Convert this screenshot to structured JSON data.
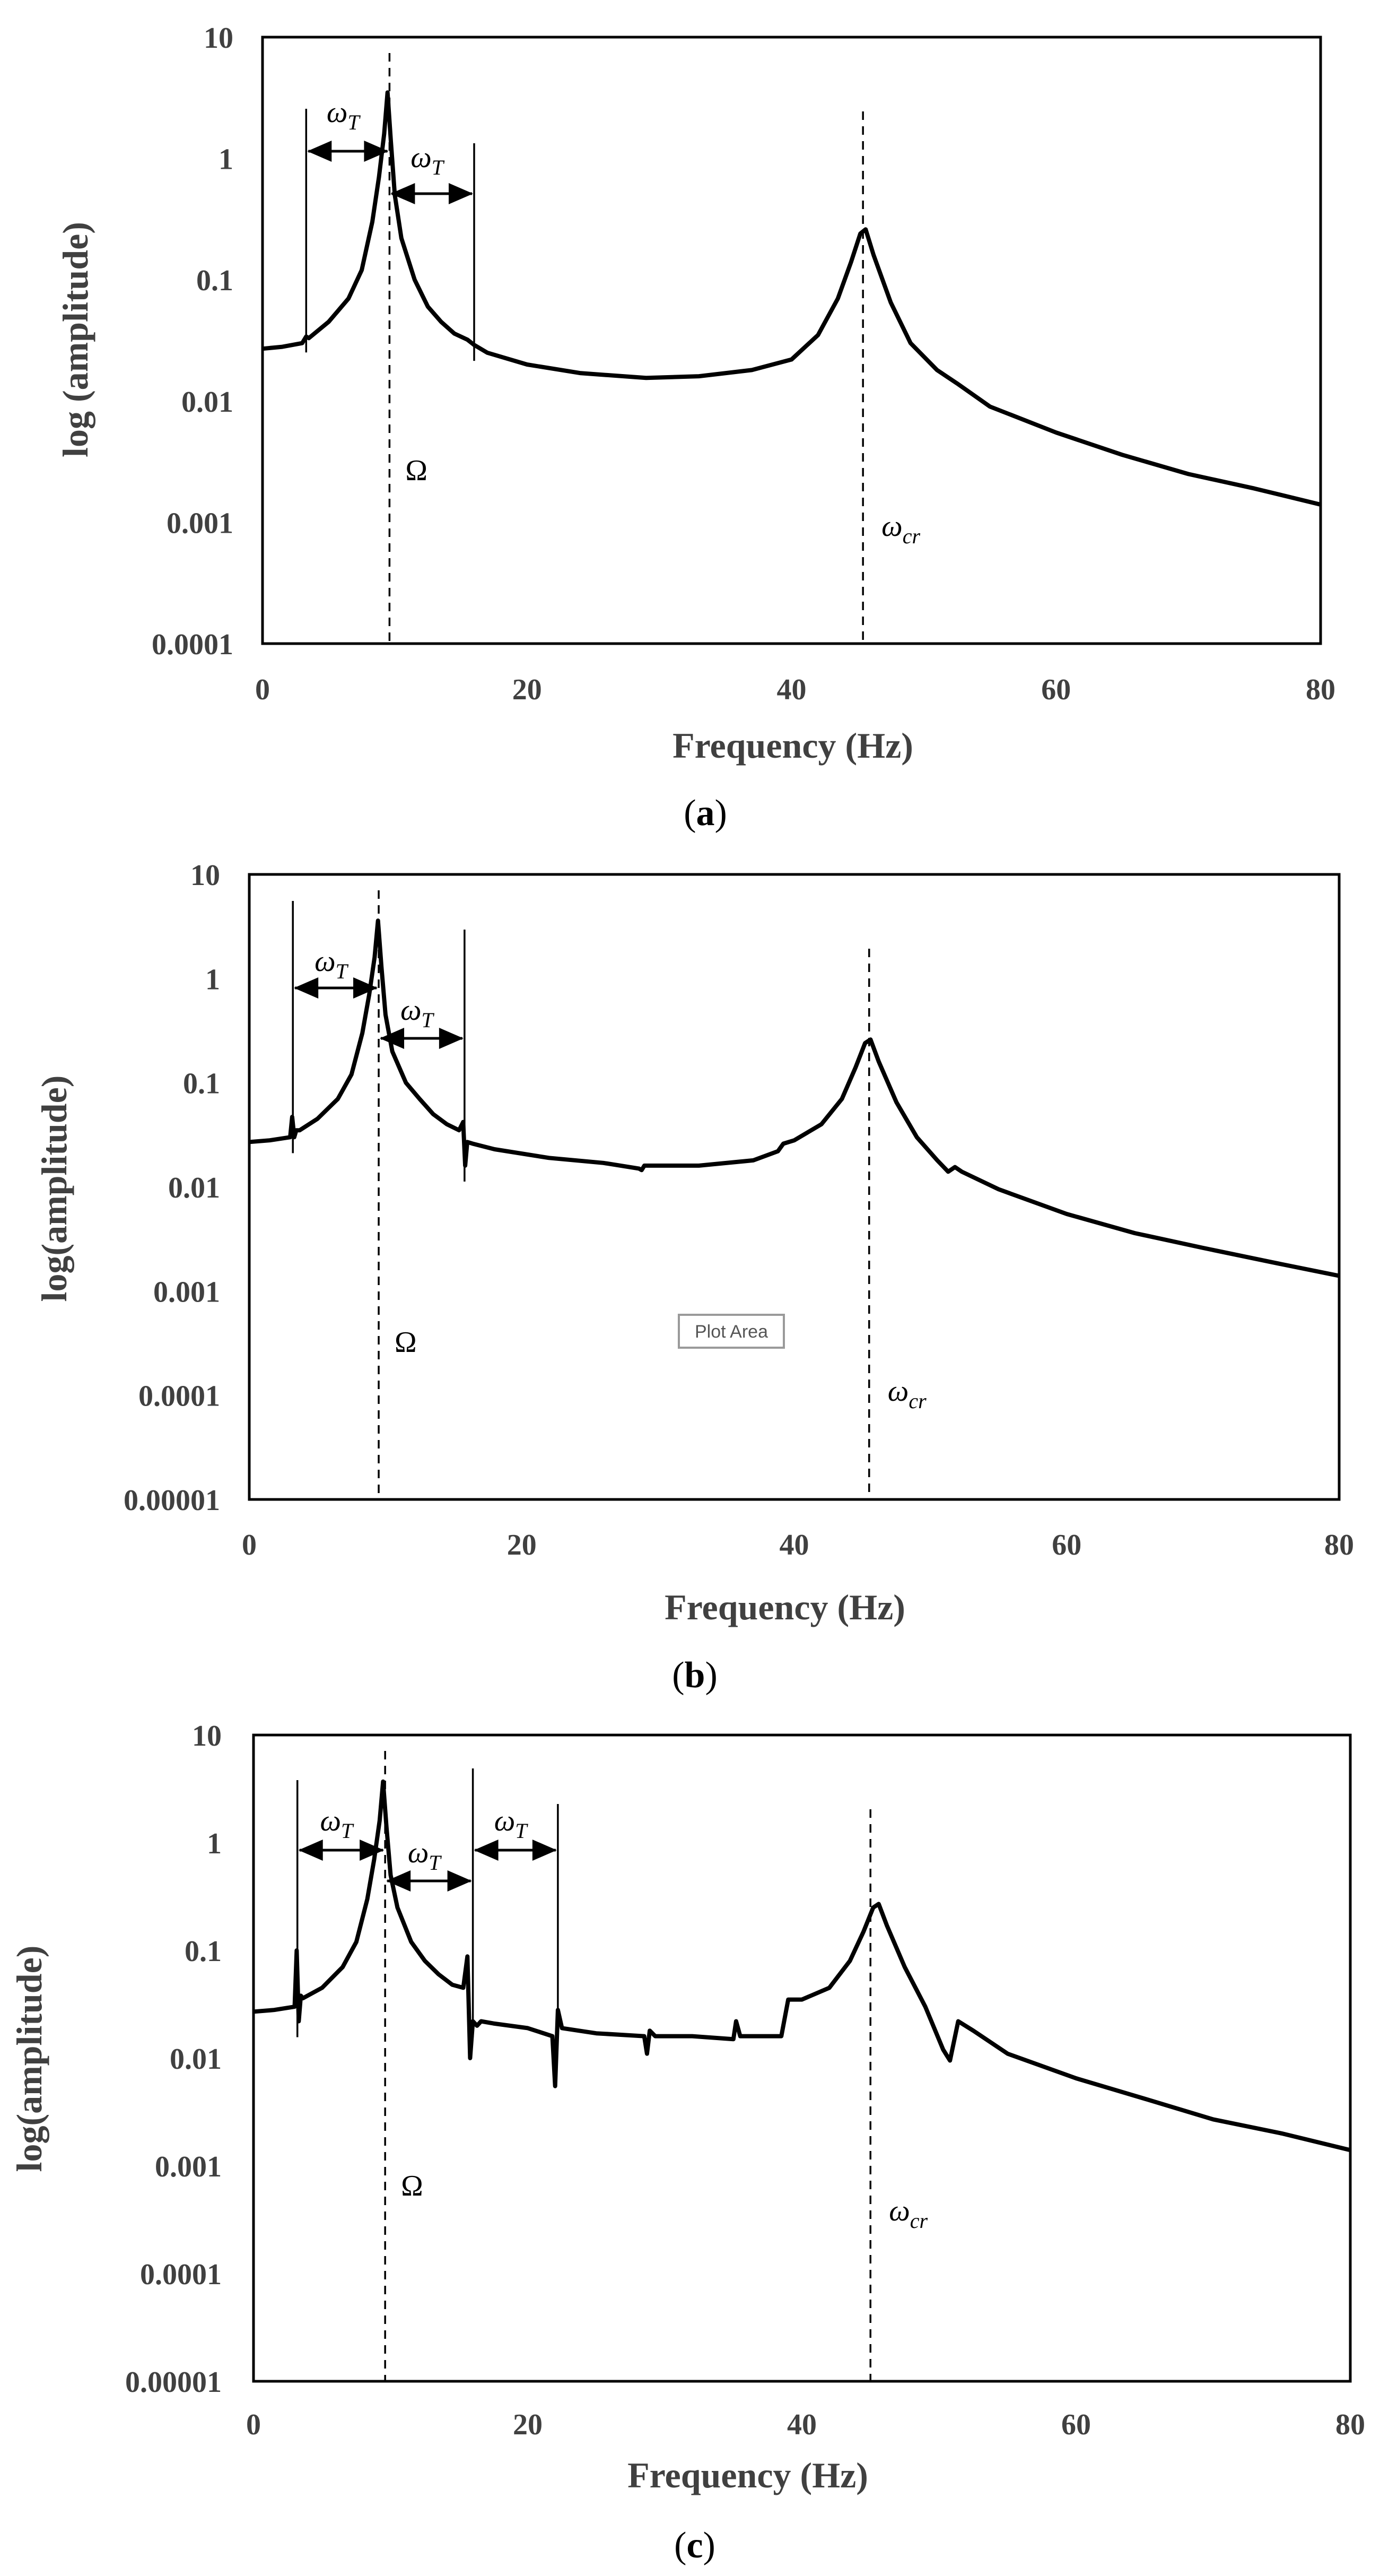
{
  "chart_data": [
    {
      "type": "line",
      "panel": "a",
      "caption_open": "(",
      "caption_letter": "a",
      "caption_close": ")",
      "xlabel": "Frequency (Hz)",
      "ylabel": "log (amplitude)",
      "xlim": [
        0,
        80
      ],
      "ylim": [
        0.0001,
        10
      ],
      "yscale": "log",
      "xticks": [
        "0",
        "20",
        "40",
        "60",
        "80"
      ],
      "yticks": [
        "0.0001",
        "0.001",
        "0.01",
        "0.1",
        "1",
        "10"
      ],
      "series": [
        {
          "name": "amplitude",
          "x": [
            0,
            1.5,
            3,
            3.3,
            3.5,
            5,
            6.5,
            7.5,
            8.3,
            8.8,
            9.2,
            9.45,
            9.7,
            10.0,
            10.5,
            11.5,
            12.5,
            13.5,
            14.5,
            15.5,
            16.0,
            17,
            20,
            24,
            29,
            33,
            37,
            40,
            42,
            43.5,
            44.5,
            45.2,
            45.6,
            46.2,
            47.5,
            49,
            51,
            52.5,
            55,
            60,
            65,
            70,
            75,
            80
          ],
          "y": [
            0.027,
            0.028,
            0.03,
            0.034,
            0.033,
            0.045,
            0.07,
            0.12,
            0.3,
            0.7,
            1.6,
            3.5,
            1.4,
            0.5,
            0.22,
            0.1,
            0.06,
            0.045,
            0.036,
            0.032,
            0.029,
            0.025,
            0.02,
            0.017,
            0.0155,
            0.016,
            0.018,
            0.022,
            0.035,
            0.07,
            0.14,
            0.24,
            0.26,
            0.16,
            0.065,
            0.03,
            0.018,
            0.014,
            0.009,
            0.0055,
            0.0036,
            0.0025,
            0.0019,
            0.0014
          ]
        }
      ],
      "annotations": {
        "omega_t_label": "ω",
        "omega_t_sub": "T",
        "Omega_label": "Ω",
        "omega_cr_label": "ω",
        "omega_cr_sub": "cr",
        "Omega_x": 9.6,
        "omega_cr_x": 45.4,
        "omega_t_markers_x": [
          3.3,
          9.6,
          16.0
        ]
      }
    },
    {
      "type": "line",
      "panel": "b",
      "caption_open": "(",
      "caption_letter": "b",
      "caption_close": ")",
      "xlabel": "Frequency (Hz)",
      "ylabel": "log(amplitude)",
      "xlim": [
        0,
        80
      ],
      "ylim": [
        1e-05,
        10
      ],
      "yscale": "log",
      "xticks": [
        "0",
        "20",
        "40",
        "60",
        "80"
      ],
      "yticks": [
        "0.00001",
        "0.0001",
        "0.001",
        "0.01",
        "0.1",
        "1",
        "10"
      ],
      "tooltip": "Plot Area",
      "series": [
        {
          "name": "amplitude",
          "x": [
            0,
            1.5,
            3.0,
            3.15,
            3.3,
            3.45,
            3.7,
            5,
            6.5,
            7.5,
            8.3,
            8.8,
            9.2,
            9.45,
            9.7,
            10.0,
            10.5,
            11.5,
            12.5,
            13.5,
            14.5,
            15.4,
            15.7,
            15.85,
            16.0,
            16.4,
            18,
            22,
            26,
            28.6,
            28.8,
            29,
            33,
            37,
            38.8,
            39.2,
            40,
            42,
            43.5,
            44.5,
            45.2,
            45.6,
            46.2,
            47.5,
            49,
            50.5,
            51.3,
            51.8,
            52.3,
            55,
            60,
            65,
            70,
            75,
            80
          ],
          "y": [
            0.027,
            0.028,
            0.03,
            0.047,
            0.03,
            0.035,
            0.035,
            0.045,
            0.07,
            0.12,
            0.3,
            0.7,
            1.6,
            3.6,
            1.3,
            0.45,
            0.2,
            0.1,
            0.07,
            0.05,
            0.04,
            0.035,
            0.042,
            0.016,
            0.027,
            0.026,
            0.023,
            0.019,
            0.017,
            0.015,
            0.0145,
            0.016,
            0.016,
            0.018,
            0.022,
            0.026,
            0.028,
            0.04,
            0.07,
            0.14,
            0.24,
            0.26,
            0.16,
            0.065,
            0.03,
            0.018,
            0.014,
            0.0155,
            0.014,
            0.0095,
            0.0055,
            0.0036,
            0.0026,
            0.0019,
            0.0014
          ]
        }
      ],
      "annotations": {
        "omega_t_label": "ω",
        "omega_t_sub": "T",
        "Omega_label": "Ω",
        "omega_cr_label": "ω",
        "omega_cr_sub": "cr",
        "Omega_x": 9.5,
        "omega_cr_x": 45.5,
        "omega_t_markers_x": [
          3.2,
          9.5,
          15.8
        ]
      }
    },
    {
      "type": "line",
      "panel": "c",
      "caption_open": "(",
      "caption_letter": "c",
      "caption_close": ")",
      "xlabel": "Frequency (Hz)",
      "ylabel": "log(amplitude)",
      "xlim": [
        0,
        80
      ],
      "ylim": [
        1e-05,
        10
      ],
      "yscale": "log",
      "xticks": [
        "0",
        "20",
        "40",
        "60",
        "80"
      ],
      "yticks": [
        "0.00001",
        "0.0001",
        "0.001",
        "0.01",
        "0.1",
        "1",
        "10"
      ],
      "series": [
        {
          "name": "amplitude",
          "x": [
            0,
            1.5,
            3.0,
            3.15,
            3.3,
            3.45,
            3.6,
            5,
            6.5,
            7.5,
            8.3,
            8.8,
            9.2,
            9.45,
            9.7,
            10.0,
            10.5,
            11.5,
            12.5,
            13.5,
            14.5,
            15.3,
            15.6,
            15.8,
            16.0,
            16.3,
            16.6,
            17.5,
            20,
            21.8,
            22.0,
            22.2,
            22.5,
            25,
            28.5,
            28.7,
            28.9,
            29.3,
            32,
            35.0,
            35.2,
            35.5,
            37,
            38.5,
            39,
            40,
            42,
            43.5,
            44.5,
            45.2,
            45.6,
            46.2,
            47.5,
            49,
            50.3,
            50.8,
            51.4,
            52.5,
            55,
            60,
            65,
            70,
            75,
            80
          ],
          "y": [
            0.027,
            0.028,
            0.03,
            0.1,
            0.022,
            0.038,
            0.036,
            0.045,
            0.07,
            0.12,
            0.3,
            0.7,
            1.6,
            3.7,
            1.4,
            0.5,
            0.25,
            0.12,
            0.08,
            0.06,
            0.048,
            0.045,
            0.088,
            0.01,
            0.022,
            0.02,
            0.022,
            0.021,
            0.019,
            0.016,
            0.0055,
            0.028,
            0.019,
            0.017,
            0.016,
            0.011,
            0.018,
            0.016,
            0.016,
            0.015,
            0.022,
            0.016,
            0.016,
            0.016,
            0.035,
            0.035,
            0.045,
            0.08,
            0.15,
            0.25,
            0.27,
            0.17,
            0.07,
            0.03,
            0.012,
            0.0095,
            0.022,
            0.018,
            0.011,
            0.0065,
            0.0042,
            0.0027,
            0.002,
            0.0014
          ]
        }
      ],
      "annotations": {
        "omega_t_label": "ω",
        "omega_t_sub": "T",
        "Omega_label": "Ω",
        "omega_cr_label": "ω",
        "omega_cr_sub": "cr",
        "Omega_x": 9.6,
        "omega_cr_x": 45.0,
        "omega_t_markers_x": [
          3.2,
          9.6,
          16.0,
          22.2
        ]
      }
    }
  ]
}
